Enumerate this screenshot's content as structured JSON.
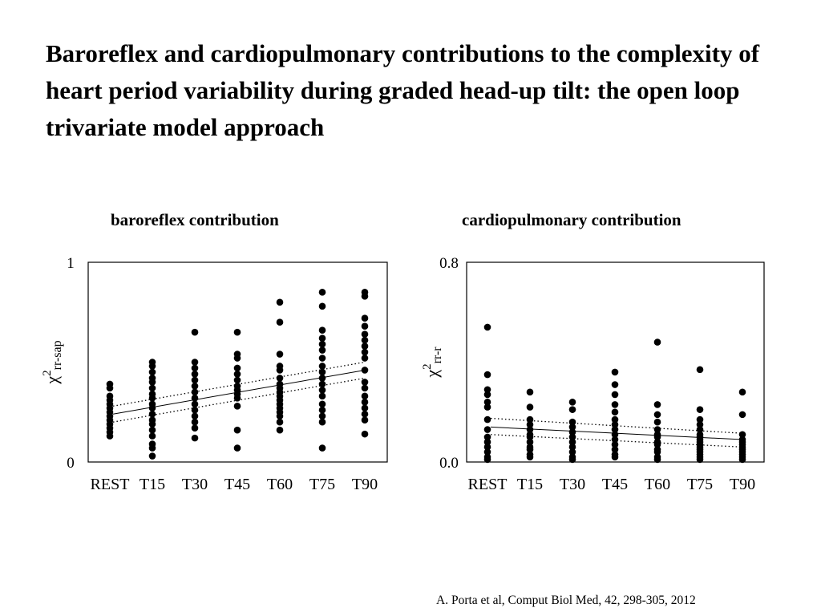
{
  "slide": {
    "title": "Baroreflex and cardiopulmonary contributions to the complexity of heart period variability during graded head-up tilt: the open loop trivariate model approach",
    "citation": "A. Porta et al, Comput Biol Med, 42, 298-305, 2012"
  },
  "chart_data": [
    {
      "type": "scatter",
      "title": "baroreflex contribution",
      "ylabel_symbol": "χ",
      "ylabel_sup": "2",
      "ylabel_sub": "rr-sap",
      "categories": [
        "REST",
        "T15",
        "T30",
        "T45",
        "T60",
        "T75",
        "T90"
      ],
      "ylim": [
        0,
        1
      ],
      "ytick_labels": [
        "0",
        "1"
      ],
      "grid": false,
      "legend": "none",
      "points": [
        [
          0.39,
          0.37,
          0.33,
          0.31,
          0.29,
          0.27,
          0.25,
          0.23,
          0.21,
          0.19,
          0.17,
          0.15,
          0.13
        ],
        [
          0.5,
          0.48,
          0.45,
          0.42,
          0.4,
          0.37,
          0.34,
          0.32,
          0.29,
          0.27,
          0.24,
          0.21,
          0.19,
          0.16,
          0.13,
          0.09,
          0.07,
          0.03
        ],
        [
          0.65,
          0.5,
          0.47,
          0.44,
          0.41,
          0.38,
          0.35,
          0.32,
          0.29,
          0.26,
          0.23,
          0.2,
          0.17,
          0.12
        ],
        [
          0.65,
          0.54,
          0.52,
          0.47,
          0.44,
          0.41,
          0.38,
          0.36,
          0.34,
          0.32,
          0.28,
          0.16,
          0.07
        ],
        [
          0.8,
          0.7,
          0.54,
          0.48,
          0.46,
          0.42,
          0.39,
          0.37,
          0.35,
          0.33,
          0.31,
          0.29,
          0.27,
          0.25,
          0.23,
          0.2,
          0.16
        ],
        [
          0.85,
          0.78,
          0.66,
          0.62,
          0.59,
          0.56,
          0.52,
          0.48,
          0.45,
          0.42,
          0.39,
          0.36,
          0.33,
          0.29,
          0.26,
          0.23,
          0.2,
          0.07
        ],
        [
          0.85,
          0.83,
          0.72,
          0.68,
          0.64,
          0.61,
          0.58,
          0.55,
          0.52,
          0.46,
          0.4,
          0.37,
          0.33,
          0.3,
          0.27,
          0.24,
          0.21,
          0.14
        ]
      ],
      "fit": {
        "start": 0.24,
        "end": 0.46
      },
      "ci_upper": {
        "start": 0.28,
        "end": 0.5
      },
      "ci_lower": {
        "start": 0.2,
        "end": 0.42
      }
    },
    {
      "type": "scatter",
      "title": "cardiopulmonary contribution",
      "ylabel_symbol": "χ",
      "ylabel_sup": "2",
      "ylabel_sub": "rr-r",
      "categories": [
        "REST",
        "T15",
        "T30",
        "T45",
        "T60",
        "T75",
        "T90"
      ],
      "ylim": [
        0,
        0.8
      ],
      "ytick_labels": [
        "0.0",
        "0.8"
      ],
      "grid": false,
      "legend": "none",
      "points": [
        [
          0.54,
          0.35,
          0.29,
          0.27,
          0.24,
          0.22,
          0.17,
          0.13,
          0.1,
          0.08,
          0.06,
          0.04,
          0.02,
          0.01
        ],
        [
          0.28,
          0.22,
          0.17,
          0.15,
          0.13,
          0.11,
          0.1,
          0.08,
          0.06,
          0.05,
          0.03,
          0.02
        ],
        [
          0.24,
          0.21,
          0.16,
          0.14,
          0.12,
          0.1,
          0.08,
          0.06,
          0.04,
          0.02,
          0.01
        ],
        [
          0.36,
          0.31,
          0.27,
          0.23,
          0.2,
          0.17,
          0.15,
          0.13,
          0.11,
          0.09,
          0.07,
          0.05,
          0.03,
          0.02
        ],
        [
          0.48,
          0.23,
          0.19,
          0.16,
          0.13,
          0.11,
          0.1,
          0.08,
          0.07,
          0.05,
          0.04,
          0.02,
          0.01
        ],
        [
          0.37,
          0.21,
          0.17,
          0.15,
          0.13,
          0.11,
          0.1,
          0.09,
          0.08,
          0.07,
          0.06,
          0.05,
          0.04,
          0.03,
          0.02,
          0.01
        ],
        [
          0.28,
          0.19,
          0.11,
          0.09,
          0.08,
          0.07,
          0.06,
          0.05,
          0.04,
          0.03,
          0.02,
          0.01
        ]
      ],
      "fit": {
        "start": 0.14,
        "end": 0.09
      },
      "ci_upper": {
        "start": 0.175,
        "end": 0.115
      },
      "ci_lower": {
        "start": 0.11,
        "end": 0.06
      }
    }
  ]
}
